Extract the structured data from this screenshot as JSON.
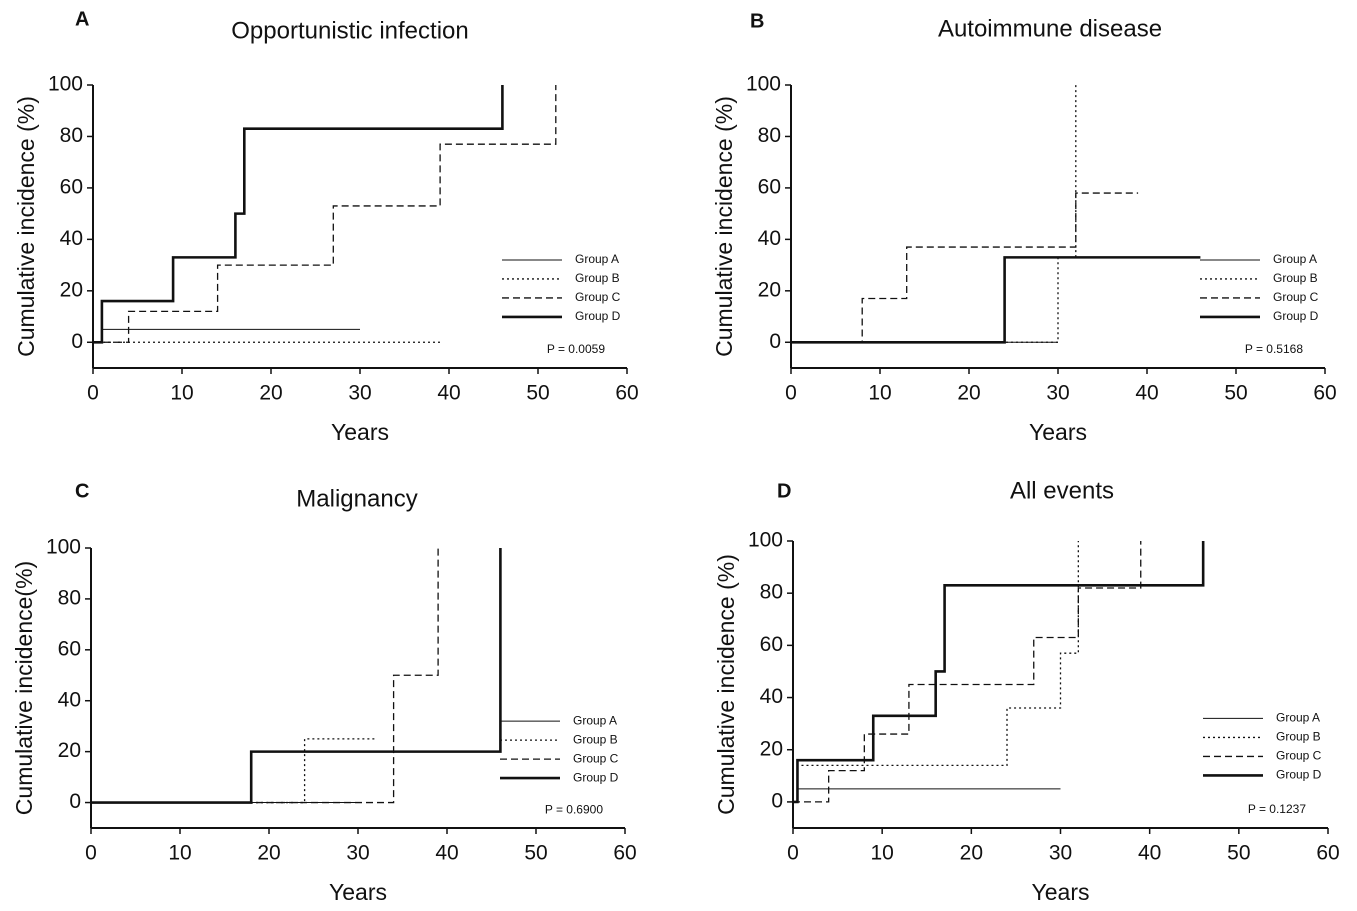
{
  "chart_data": [
    {
      "type": "step",
      "panel": "A",
      "title": "Opportunistic infection",
      "x_label": "Years",
      "y_label": "Cumulative incidence (%)",
      "xlim": [
        0,
        60
      ],
      "xticks": [
        0,
        10,
        20,
        30,
        40,
        50,
        60
      ],
      "ylim": [
        -10,
        100
      ],
      "yticks": [
        0,
        20,
        40,
        60,
        80,
        100
      ],
      "annotation": "P = 0.0059",
      "series": [
        {
          "name": "Group A",
          "color": "#111111",
          "line_style": "solid",
          "line_width": 1,
          "x": [
            0,
            1,
            30
          ],
          "values": [
            0,
            5,
            5
          ]
        },
        {
          "name": "Group B",
          "color": "#111111",
          "line_style": "dotted",
          "line_width": 1.3,
          "x": [
            0,
            39
          ],
          "values": [
            0,
            0
          ]
        },
        {
          "name": "Group C",
          "color": "#111111",
          "line_style": "dashed",
          "line_width": 1.3,
          "x": [
            0,
            4,
            14,
            27,
            39,
            52
          ],
          "values": [
            0,
            12,
            30,
            53,
            77,
            100
          ]
        },
        {
          "name": "Group D",
          "color": "#111111",
          "line_style": "solid",
          "line_width": 2.6,
          "x": [
            0,
            1,
            9,
            16,
            17,
            46
          ],
          "values": [
            0,
            16,
            33,
            50,
            83,
            100
          ]
        }
      ]
    },
    {
      "type": "step",
      "panel": "B",
      "title": "Autoimmune disease",
      "x_label": "Years",
      "y_label": "Cumulative incidence (%)",
      "xlim": [
        0,
        60
      ],
      "xticks": [
        0,
        10,
        20,
        30,
        40,
        50,
        60
      ],
      "ylim": [
        -10,
        100
      ],
      "yticks": [
        0,
        20,
        40,
        60,
        80,
        100
      ],
      "annotation": "P = 0.5168",
      "series": [
        {
          "name": "Group A",
          "color": "#111111",
          "line_style": "solid",
          "line_width": 1,
          "x": [
            0,
            30
          ],
          "values": [
            0,
            0
          ]
        },
        {
          "name": "Group B",
          "color": "#111111",
          "line_style": "dotted",
          "line_width": 1.3,
          "x": [
            0,
            30,
            32
          ],
          "values": [
            0,
            33,
            100
          ]
        },
        {
          "name": "Group C",
          "color": "#111111",
          "line_style": "dashed",
          "line_width": 1.3,
          "x": [
            0,
            8,
            13,
            32,
            39
          ],
          "values": [
            0,
            17,
            37,
            58,
            58
          ]
        },
        {
          "name": "Group D",
          "color": "#111111",
          "line_style": "solid",
          "line_width": 2.6,
          "x": [
            0,
            24,
            46
          ],
          "values": [
            0,
            33,
            33
          ]
        }
      ]
    },
    {
      "type": "step",
      "panel": "C",
      "title": "Malignancy",
      "x_label": "Years",
      "y_label": "Cumulative incidence(%)",
      "xlim": [
        0,
        60
      ],
      "xticks": [
        0,
        10,
        20,
        30,
        40,
        50,
        60
      ],
      "ylim": [
        -10,
        100
      ],
      "yticks": [
        0,
        20,
        40,
        60,
        80,
        100
      ],
      "annotation": "P = 0.6900",
      "series": [
        {
          "name": "Group A",
          "color": "#111111",
          "line_style": "solid",
          "line_width": 1,
          "x": [
            0,
            30
          ],
          "values": [
            0,
            0
          ]
        },
        {
          "name": "Group B",
          "color": "#111111",
          "line_style": "dotted",
          "line_width": 1.3,
          "x": [
            0,
            24,
            32
          ],
          "values": [
            0,
            25,
            25
          ]
        },
        {
          "name": "Group C",
          "color": "#111111",
          "line_style": "dashed",
          "line_width": 1.3,
          "x": [
            0,
            34,
            39
          ],
          "values": [
            0,
            50,
            100
          ]
        },
        {
          "name": "Group D",
          "color": "#111111",
          "line_style": "solid",
          "line_width": 2.6,
          "x": [
            0,
            18,
            46
          ],
          "values": [
            0,
            20,
            100
          ]
        }
      ]
    },
    {
      "type": "step",
      "panel": "D",
      "title": "All events",
      "x_label": "Years",
      "y_label": "Cumulative incidence (%)",
      "xlim": [
        0,
        60
      ],
      "xticks": [
        0,
        10,
        20,
        30,
        40,
        50,
        60
      ],
      "ylim": [
        -10,
        100
      ],
      "yticks": [
        0,
        20,
        40,
        60,
        80,
        100
      ],
      "annotation": "P = 0.1237",
      "series": [
        {
          "name": "Group A",
          "color": "#111111",
          "line_style": "solid",
          "line_width": 1,
          "x": [
            0,
            0.5,
            30
          ],
          "values": [
            0,
            5,
            5
          ]
        },
        {
          "name": "Group B",
          "color": "#111111",
          "line_style": "dotted",
          "line_width": 1.3,
          "x": [
            0,
            0.5,
            24,
            30,
            32
          ],
          "values": [
            0,
            14,
            36,
            57,
            100
          ]
        },
        {
          "name": "Group C",
          "color": "#111111",
          "line_style": "dashed",
          "line_width": 1.3,
          "x": [
            0,
            4,
            8,
            13,
            27,
            32,
            39
          ],
          "values": [
            0,
            12,
            26,
            45,
            63,
            82,
            100
          ]
        },
        {
          "name": "Group D",
          "color": "#111111",
          "line_style": "solid",
          "line_width": 2.6,
          "x": [
            0,
            0.5,
            9,
            16,
            17,
            46
          ],
          "values": [
            0,
            16,
            33,
            50,
            83,
            100
          ]
        }
      ]
    }
  ]
}
